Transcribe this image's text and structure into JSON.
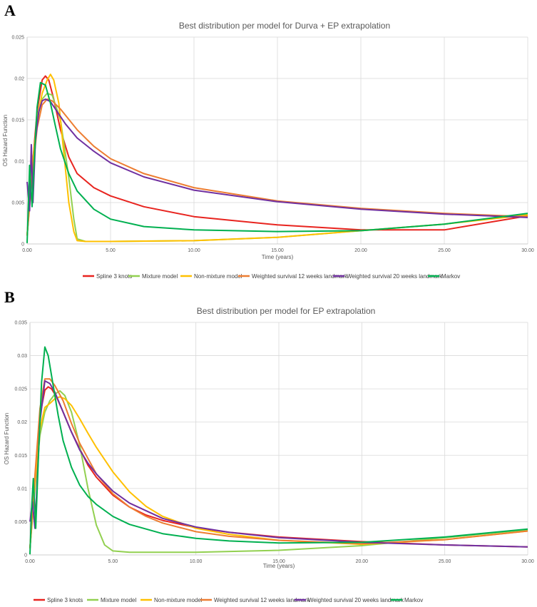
{
  "panels": [
    {
      "label": "A"
    },
    {
      "label": "B"
    }
  ],
  "chart_data": [
    {
      "type": "line",
      "title": "Best distribution per model for Durva + EP extrapolation",
      "xlabel": "Time (years)",
      "ylabel": "OS Hazard Function",
      "xlim": [
        0,
        30
      ],
      "ylim": [
        0,
        0.025
      ],
      "xticks": [
        "0.00",
        "5.00",
        "10.00",
        "15.00",
        "20.00",
        "25.00",
        "30.00"
      ],
      "yticks": [
        "0",
        "0.005",
        "0.01",
        "0.015",
        "0.02",
        "0.025"
      ],
      "legend_position": "bottom",
      "series": [
        {
          "name": "Spline 3 knots",
          "color": "#e8241f",
          "x": [
            0,
            0.3,
            0.6,
            0.9,
            1.1,
            1.3,
            1.6,
            2,
            2.5,
            3,
            4,
            5,
            7,
            10,
            15,
            20,
            25,
            30
          ],
          "y": [
            0.001,
            0.009,
            0.016,
            0.0198,
            0.0203,
            0.0198,
            0.0175,
            0.0138,
            0.0105,
            0.0085,
            0.0068,
            0.0058,
            0.0045,
            0.0033,
            0.0023,
            0.0017,
            0.0017,
            0.0034
          ]
        },
        {
          "name": "Mixture model",
          "color": "#92d050",
          "x": [
            0,
            0.3,
            0.6,
            0.9,
            1.2,
            1.5,
            2,
            2.5,
            2.8,
            3,
            3.5,
            5,
            10,
            15,
            20,
            25,
            30
          ],
          "y": [
            0.001,
            0.009,
            0.015,
            0.0175,
            0.0182,
            0.018,
            0.015,
            0.008,
            0.003,
            0.0006,
            0.0003,
            0.0003,
            0.0004,
            0.0008,
            0.0016,
            0.0024,
            0.0036
          ]
        },
        {
          "name": "Non-mixture model",
          "color": "#ffc000",
          "x": [
            0,
            0.3,
            0.6,
            0.9,
            1.2,
            1.4,
            1.6,
            1.9,
            2.2,
            2.5,
            2.8,
            3,
            3.5,
            5,
            10,
            15,
            20,
            25,
            30
          ],
          "y": [
            0.001,
            0.009,
            0.015,
            0.0182,
            0.0198,
            0.0205,
            0.0198,
            0.017,
            0.011,
            0.005,
            0.0015,
            0.0004,
            0.0003,
            0.0003,
            0.0004,
            0.0008,
            0.0016,
            0.0024,
            0.0035
          ]
        },
        {
          "name": "Weighted survival 12 weeks landmark",
          "color": "#ed7d31",
          "x": [
            0,
            0.3,
            0.6,
            0.9,
            1.2,
            1.5,
            2,
            3,
            4,
            5,
            7,
            10,
            15,
            20,
            25,
            30
          ],
          "y": [
            0.001,
            0.008,
            0.014,
            0.0168,
            0.0175,
            0.0173,
            0.0163,
            0.0138,
            0.0118,
            0.0103,
            0.0085,
            0.0068,
            0.0052,
            0.0043,
            0.0037,
            0.0033
          ]
        },
        {
          "name": "Weighted survival 20 weeks landmark",
          "color": "#7030a0",
          "x": [
            0,
            0.15,
            0.25,
            0.35,
            0.5,
            0.7,
            0.9,
            1.1,
            1.4,
            1.8,
            2.3,
            3,
            4,
            5,
            7,
            10,
            15,
            20,
            25,
            30
          ],
          "y": [
            0.0075,
            0.004,
            0.012,
            0.005,
            0.0125,
            0.016,
            0.0173,
            0.0175,
            0.0172,
            0.016,
            0.0145,
            0.0128,
            0.0112,
            0.0098,
            0.0081,
            0.0065,
            0.0051,
            0.0042,
            0.0036,
            0.0032
          ]
        },
        {
          "name": "Markov",
          "color": "#00b050",
          "x": [
            0,
            0.1,
            0.15,
            0.3,
            0.45,
            0.6,
            0.8,
            1.1,
            1.4,
            1.7,
            2,
            2.5,
            3,
            4,
            5,
            7,
            10,
            15,
            20,
            25,
            30
          ],
          "y": [
            0.0001,
            0.006,
            0.0095,
            0.0045,
            0.011,
            0.0165,
            0.0195,
            0.0192,
            0.017,
            0.0142,
            0.0115,
            0.0085,
            0.0064,
            0.0042,
            0.003,
            0.0021,
            0.0017,
            0.0015,
            0.0016,
            0.0024,
            0.0037
          ]
        }
      ]
    },
    {
      "type": "line",
      "title": "Best distribution per model for EP extrapolation",
      "xlabel": "Time (years)",
      "ylabel": "OS Hazard Function",
      "xlim": [
        0,
        30
      ],
      "ylim": [
        0,
        0.035
      ],
      "xticks": [
        "0.00",
        "5.00",
        "10.00",
        "15.00",
        "20.00",
        "25.00",
        "30.00"
      ],
      "yticks": [
        "0",
        "0.005",
        "0.01",
        "0.015",
        "0.02",
        "0.025",
        "0.03",
        "0.035"
      ],
      "legend_position": "bottom",
      "series": [
        {
          "name": "Spline 3 knots",
          "color": "#e8241f",
          "x": [
            0,
            0.3,
            0.6,
            0.9,
            1.1,
            1.3,
            1.6,
            2,
            2.5,
            3,
            3.5,
            4,
            5,
            6,
            7,
            8,
            10,
            12,
            15,
            20,
            25,
            30
          ],
          "y": [
            0.001,
            0.011,
            0.021,
            0.0248,
            0.0253,
            0.025,
            0.0238,
            0.0215,
            0.0185,
            0.016,
            0.0135,
            0.0117,
            0.009,
            0.0072,
            0.006,
            0.0052,
            0.0041,
            0.0034,
            0.0027,
            0.002,
            0.0015,
            0.0012
          ]
        },
        {
          "name": "Mixture model",
          "color": "#92d050",
          "x": [
            0,
            0.3,
            0.6,
            0.9,
            1.2,
            1.5,
            1.8,
            2.1,
            2.5,
            3,
            3.5,
            4,
            4.5,
            5,
            6,
            10,
            15,
            20,
            25,
            30
          ],
          "y": [
            0.001,
            0.01,
            0.018,
            0.0215,
            0.0232,
            0.0242,
            0.0247,
            0.024,
            0.0215,
            0.0165,
            0.01,
            0.0045,
            0.0015,
            0.0006,
            0.0004,
            0.0004,
            0.0007,
            0.0014,
            0.0026,
            0.0038
          ]
        },
        {
          "name": "Non-mixture model",
          "color": "#ffc000",
          "x": [
            0,
            0.3,
            0.6,
            0.9,
            1.2,
            1.5,
            1.8,
            2.1,
            2.5,
            3,
            3.5,
            4,
            5,
            6,
            7,
            8,
            10,
            12,
            15,
            20,
            25,
            30
          ],
          "y": [
            0.001,
            0.011,
            0.019,
            0.0222,
            0.0228,
            0.0235,
            0.0238,
            0.0235,
            0.0225,
            0.0205,
            0.0183,
            0.0162,
            0.0125,
            0.0095,
            0.0073,
            0.0058,
            0.004,
            0.0031,
            0.0022,
            0.0016,
            0.0023,
            0.0036
          ]
        },
        {
          "name": "Weighted survival 12 weeks landmark",
          "color": "#ed7d31",
          "x": [
            0,
            0.3,
            0.6,
            0.9,
            1.2,
            1.5,
            2,
            2.5,
            3,
            4,
            5,
            6,
            7,
            8,
            10,
            12,
            15,
            20,
            25,
            30
          ],
          "y": [
            0.001,
            0.012,
            0.022,
            0.0265,
            0.0265,
            0.0255,
            0.0232,
            0.0198,
            0.0168,
            0.0122,
            0.0092,
            0.0072,
            0.0058,
            0.0048,
            0.0035,
            0.0028,
            0.0022,
            0.0017,
            0.0023,
            0.0036
          ]
        },
        {
          "name": "Weighted survival 20 weeks landmark",
          "color": "#7030a0",
          "x": [
            0,
            0.15,
            0.3,
            0.45,
            0.6,
            0.9,
            1.2,
            1.5,
            2,
            2.5,
            3,
            3.5,
            4,
            5,
            6,
            8,
            10,
            12,
            15,
            20,
            25,
            30
          ],
          "y": [
            0.005,
            0.008,
            0.004,
            0.012,
            0.02,
            0.0262,
            0.0258,
            0.0245,
            0.0215,
            0.0185,
            0.0158,
            0.0138,
            0.0122,
            0.0096,
            0.0078,
            0.0055,
            0.0042,
            0.0034,
            0.0026,
            0.0019,
            0.0015,
            0.0012
          ]
        },
        {
          "name": "Markov",
          "color": "#00b050",
          "x": [
            0,
            0.1,
            0.2,
            0.35,
            0.5,
            0.7,
            0.9,
            1.1,
            1.4,
            1.7,
            2,
            2.5,
            3,
            3.5,
            4,
            5,
            6,
            8,
            10,
            12,
            15,
            20,
            25,
            30
          ],
          "y": [
            0.0001,
            0.007,
            0.0115,
            0.004,
            0.014,
            0.026,
            0.0313,
            0.03,
            0.0255,
            0.021,
            0.0172,
            0.0132,
            0.0105,
            0.0088,
            0.0076,
            0.0058,
            0.0046,
            0.0032,
            0.0025,
            0.0021,
            0.0018,
            0.0019,
            0.0027,
            0.0039
          ]
        }
      ]
    }
  ]
}
